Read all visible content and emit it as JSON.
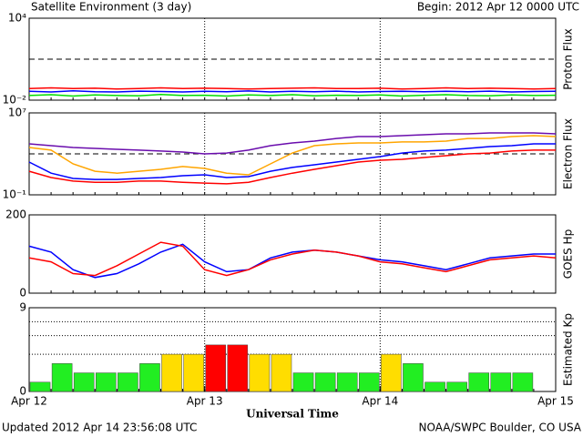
{
  "page": {
    "title": "Satellite Environment (3 day)",
    "begin": "Begin:  2012 Apr 12 0000 UTC",
    "updated": "Updated 2012 Apr 14 23:56:08 UTC",
    "credit": "NOAA/SWPC Boulder, CO USA"
  },
  "chart_data": [
    {
      "type": "line",
      "ylabel": "Proton Flux",
      "log": true,
      "xlim": [
        0,
        72
      ],
      "ylim": [
        0.01,
        10000
      ],
      "yticks": [
        {
          "value": 10000,
          "label": "10⁴"
        },
        {
          "value": 0.01,
          "label": "10⁻²"
        }
      ],
      "threshold": 10,
      "vlines": [
        24,
        48
      ],
      "x": [
        0,
        3,
        6,
        9,
        12,
        15,
        18,
        21,
        24,
        27,
        30,
        33,
        36,
        39,
        42,
        45,
        48,
        51,
        54,
        57,
        60,
        63,
        66,
        69,
        72
      ],
      "series": [
        {
          "color": "#ff0000",
          "values": [
            0.07,
            0.08,
            0.07,
            0.075,
            0.065,
            0.07,
            0.08,
            0.07,
            0.075,
            0.07,
            0.065,
            0.07,
            0.075,
            0.08,
            0.07,
            0.07,
            0.075,
            0.065,
            0.07,
            0.08,
            0.07,
            0.075,
            0.07,
            0.065,
            0.07
          ]
        },
        {
          "color": "#0000ff",
          "values": [
            0.045,
            0.04,
            0.048,
            0.042,
            0.04,
            0.046,
            0.043,
            0.04,
            0.045,
            0.042,
            0.047,
            0.04,
            0.044,
            0.042,
            0.046,
            0.04,
            0.043,
            0.045,
            0.041,
            0.044,
            0.042,
            0.046,
            0.04,
            0.043,
            0.044
          ]
        },
        {
          "color": "#00dd00",
          "values": [
            0.022,
            0.025,
            0.02,
            0.024,
            0.022,
            0.021,
            0.026,
            0.022,
            0.023,
            0.02,
            0.024,
            0.022,
            0.025,
            0.021,
            0.023,
            0.022,
            0.024,
            0.02,
            0.023,
            0.025,
            0.022,
            0.021,
            0.024,
            0.022,
            0.023
          ]
        }
      ]
    },
    {
      "type": "line",
      "ylabel": "Electron Flux",
      "log": true,
      "xlim": [
        0,
        72
      ],
      "ylim": [
        0.1,
        10000000
      ],
      "yticks": [
        {
          "value": 10000000,
          "label": "10⁷"
        },
        {
          "value": 0.1,
          "label": "10⁻¹"
        }
      ],
      "threshold": 1000,
      "vlines": [
        24,
        48
      ],
      "x": [
        0,
        3,
        6,
        9,
        12,
        15,
        18,
        21,
        24,
        27,
        30,
        33,
        36,
        39,
        42,
        45,
        48,
        51,
        54,
        57,
        60,
        63,
        66,
        69,
        72
      ],
      "series": [
        {
          "color": "#6a0dad",
          "values": [
            9500,
            6300,
            4200,
            3400,
            2800,
            2300,
            1900,
            1500,
            1000,
            1200,
            2300,
            6300,
            11700,
            17500,
            32000,
            49000,
            49000,
            60000,
            74000,
            91000,
            91000,
            110000,
            110000,
            110000,
            91000
          ]
        },
        {
          "color": "#ffa500",
          "values": [
            4200,
            2300,
            105,
            20,
            13,
            20,
            31,
            58,
            38,
            13,
            9,
            105,
            1200,
            6300,
            9500,
            11700,
            11700,
            14500,
            14500,
            17500,
            32000,
            32000,
            49000,
            60000,
            49000
          ]
        },
        {
          "color": "#0000ff",
          "values": [
            160,
            13,
            4,
            3.2,
            3.2,
            4,
            4.9,
            7.4,
            9,
            4.9,
            6,
            20,
            47,
            85,
            160,
            290,
            540,
            1200,
            1900,
            2300,
            3400,
            5100,
            6300,
            9500,
            9500
          ]
        },
        {
          "color": "#ff0000",
          "values": [
            20,
            4.9,
            2.2,
            1.7,
            1.7,
            2.2,
            2.2,
            1.7,
            1.4,
            1.2,
            1.7,
            4.9,
            13,
            31,
            70,
            160,
            240,
            290,
            440,
            660,
            1000,
            1200,
            1900,
            2300,
            2300
          ]
        }
      ]
    },
    {
      "type": "line",
      "ylabel": "GOES Hp",
      "log": false,
      "xlim": [
        0,
        72
      ],
      "ylim": [
        0,
        200
      ],
      "yticks": [
        200,
        0
      ],
      "vlines": [
        24,
        48
      ],
      "x": [
        0,
        3,
        6,
        9,
        12,
        15,
        18,
        21,
        24,
        27,
        30,
        33,
        36,
        39,
        42,
        45,
        48,
        51,
        54,
        57,
        60,
        63,
        66,
        69,
        72
      ],
      "series": [
        {
          "color": "#0000ff",
          "values": [
            120,
            105,
            60,
            40,
            50,
            75,
            105,
            125,
            80,
            55,
            60,
            90,
            105,
            110,
            105,
            95,
            85,
            80,
            70,
            60,
            75,
            90,
            95,
            100,
            100
          ]
        },
        {
          "color": "#ff0000",
          "values": [
            90,
            80,
            50,
            45,
            70,
            100,
            130,
            120,
            60,
            45,
            60,
            85,
            100,
            110,
            105,
            95,
            80,
            75,
            65,
            55,
            70,
            85,
            90,
            95,
            90
          ]
        }
      ]
    },
    {
      "type": "bar",
      "ylabel": "Estimated Kp",
      "log": false,
      "xlim": [
        0,
        72
      ],
      "ylim": [
        0,
        9
      ],
      "yticks": [
        9,
        0
      ],
      "grid_lines": [
        4,
        6,
        7.5
      ],
      "vlines": [
        24,
        48
      ],
      "bin_width": 3,
      "x": [
        0,
        3,
        6,
        9,
        12,
        15,
        18,
        21,
        24,
        27,
        30,
        33,
        36,
        39,
        42,
        45,
        48,
        51,
        54,
        57,
        60,
        63,
        66,
        69
      ],
      "values": [
        1,
        3,
        2,
        2,
        2,
        3,
        4,
        4,
        5,
        5,
        4,
        4,
        2,
        2,
        2,
        2,
        4,
        3,
        1,
        1,
        2,
        2,
        2,
        null
      ],
      "colors": [
        "#22ee22",
        "#22ee22",
        "#22ee22",
        "#22ee22",
        "#22ee22",
        "#22ee22",
        "#ffdd00",
        "#ffdd00",
        "#ff0000",
        "#ff0000",
        "#ffdd00",
        "#ffdd00",
        "#22ee22",
        "#22ee22",
        "#22ee22",
        "#22ee22",
        "#ffdd00",
        "#22ee22",
        "#22ee22",
        "#22ee22",
        "#22ee22",
        "#22ee22",
        "#22ee22",
        null
      ],
      "xticks": [
        {
          "value": 0,
          "label": "Apr 12"
        },
        {
          "value": 24,
          "label": "Apr 13"
        },
        {
          "value": 48,
          "label": "Apr 14"
        },
        {
          "value": 72,
          "label": "Apr 15"
        }
      ],
      "xlabel": "Universal Time"
    }
  ]
}
